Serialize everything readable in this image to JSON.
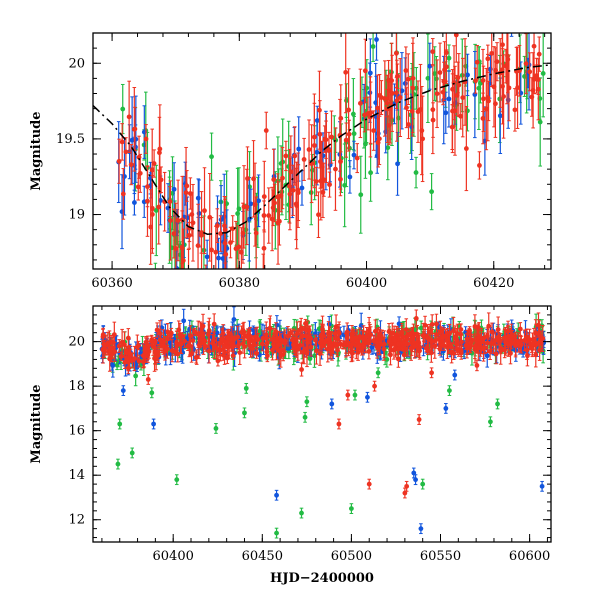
{
  "chart_data": [
    {
      "type": "scatter",
      "title": "",
      "xlabel": "",
      "ylabel": "Magnitude",
      "xlim": [
        60357,
        60429
      ],
      "ylim": [
        20.2,
        18.64
      ],
      "y_inverted": true,
      "grid": false,
      "xticks": [
        60360,
        60380,
        60400,
        60420
      ],
      "yticks": [
        19,
        19.5,
        20
      ],
      "ytick_labels": [
        "19",
        "19.5",
        "20"
      ],
      "series": [
        {
          "color": "#22bb44",
          "seed": 11,
          "n": 100,
          "error_bars": true
        },
        {
          "color": "#1155dd",
          "seed": 23,
          "n": 80,
          "error_bars": true
        },
        {
          "color": "#ee3322",
          "seed": 37,
          "n": 220,
          "error_bars": true
        }
      ],
      "model_curve": {
        "color": "#000000",
        "style": "dashed",
        "x": [
          60357,
          60360,
          60363,
          60366,
          60369,
          60372,
          60375,
          60378,
          60381,
          60384,
          60387,
          60390,
          60393,
          60396,
          60400,
          60405,
          60410,
          60415,
          60420,
          60425,
          60429
        ],
        "y": [
          19.72,
          19.6,
          19.45,
          19.25,
          19.05,
          18.92,
          18.87,
          18.88,
          18.95,
          19.06,
          19.18,
          19.3,
          19.42,
          19.52,
          19.63,
          19.74,
          19.82,
          19.88,
          19.93,
          19.97,
          19.99
        ]
      }
    },
    {
      "type": "scatter",
      "title": "",
      "xlabel": "HJD−2400000",
      "ylabel": "Magnitude",
      "xlim": [
        60355,
        60612
      ],
      "ylim": [
        21.6,
        11.0
      ],
      "y_inverted": true,
      "grid": false,
      "xticks": [
        60400,
        60450,
        60500,
        60550,
        60600
      ],
      "yticks": [
        12,
        14,
        16,
        18,
        20
      ],
      "ytick_labels": [
        "12",
        "14",
        "16",
        "18",
        "20"
      ],
      "series": [
        {
          "color": "#22bb44",
          "seed": 51,
          "n": 260,
          "error_bars": true
        },
        {
          "color": "#1155dd",
          "seed": 63,
          "n": 260,
          "error_bars": true
        },
        {
          "color": "#ee3322",
          "seed": 77,
          "n": 520,
          "error_bars": true
        }
      ],
      "outliers": {
        "green": [
          [
            60369,
            14.5
          ],
          [
            60370,
            16.3
          ],
          [
            60377,
            15.0
          ],
          [
            60388,
            17.7
          ],
          [
            60402,
            13.8
          ],
          [
            60424,
            16.1
          ],
          [
            60440,
            16.8
          ],
          [
            60441,
            17.9
          ],
          [
            60458,
            11.4
          ],
          [
            60472,
            12.3
          ],
          [
            60474,
            16.6
          ],
          [
            60475,
            17.3
          ],
          [
            60500,
            12.5
          ],
          [
            60502,
            17.6
          ],
          [
            60515,
            18.6
          ],
          [
            60540,
            13.6
          ],
          [
            60555,
            17.8
          ],
          [
            60578,
            16.4
          ],
          [
            60582,
            17.2
          ]
        ],
        "blue": [
          [
            60372,
            17.8
          ],
          [
            60389,
            16.3
          ],
          [
            60458,
            13.1
          ],
          [
            60489,
            17.2
          ],
          [
            60509,
            17.5
          ],
          [
            60535,
            14.1
          ],
          [
            60536,
            13.8
          ],
          [
            60539,
            11.6
          ],
          [
            60553,
            17.0
          ],
          [
            60558,
            18.5
          ],
          [
            60607,
            13.5
          ]
        ],
        "red": [
          [
            60386,
            18.3
          ],
          [
            60493,
            16.3
          ],
          [
            60498,
            17.6
          ],
          [
            60510,
            13.6
          ],
          [
            60513,
            18.0
          ],
          [
            60530,
            13.2
          ],
          [
            60531,
            13.5
          ],
          [
            60538,
            16.5
          ],
          [
            60545,
            18.6
          ]
        ]
      },
      "baseline_mag": 20.0
    }
  ]
}
